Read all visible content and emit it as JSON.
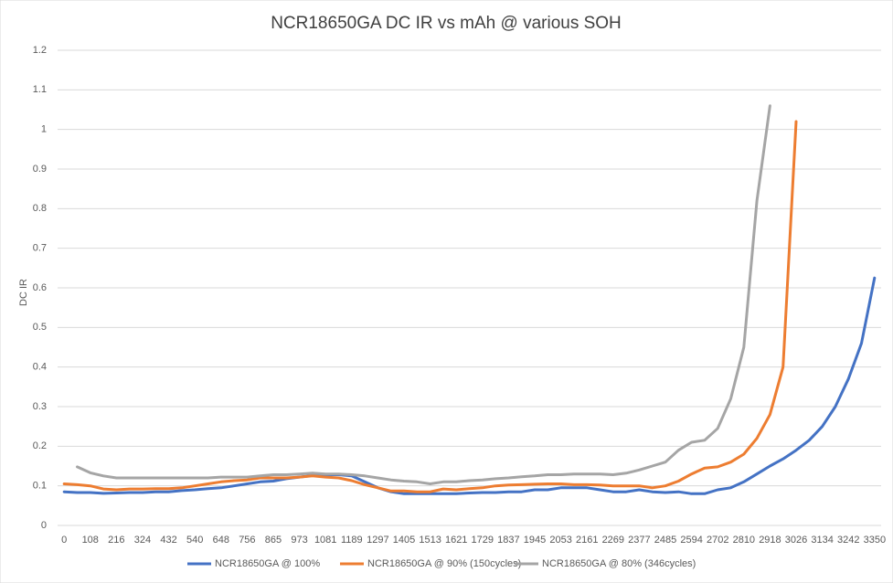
{
  "chart_data": {
    "type": "line",
    "title": "NCR18650GA DC IR vs mAh @ various SOH",
    "y_label": "DC IR",
    "categories": [
      0,
      null,
      108,
      null,
      216,
      null,
      324,
      null,
      432,
      null,
      540,
      null,
      648,
      null,
      756,
      null,
      865,
      null,
      973,
      null,
      1081,
      null,
      1189,
      null,
      1297,
      null,
      1405,
      null,
      1513,
      null,
      1621,
      null,
      1729,
      null,
      1837,
      null,
      1945,
      null,
      2053,
      null,
      2161,
      null,
      2269,
      null,
      2377,
      null,
      2485,
      null,
      2594,
      null,
      2702,
      null,
      2810,
      null,
      2918,
      null,
      3026,
      null,
      3134,
      null,
      3242,
      null,
      3350
    ],
    "series": [
      {
        "name": "NCR18650GA @ 100%",
        "color": "#4472c4",
        "values": [
          0.085,
          0.083,
          0.083,
          0.081,
          0.082,
          0.083,
          0.083,
          0.085,
          0.085,
          0.088,
          0.09,
          0.093,
          0.095,
          0.1,
          0.105,
          0.11,
          0.112,
          0.118,
          0.122,
          0.126,
          0.128,
          0.128,
          0.125,
          0.11,
          0.095,
          0.085,
          0.08,
          0.08,
          0.08,
          0.08,
          0.08,
          0.082,
          0.083,
          0.083,
          0.085,
          0.085,
          0.09,
          0.09,
          0.095,
          0.095,
          0.095,
          0.09,
          0.085,
          0.085,
          0.09,
          0.085,
          0.083,
          0.085,
          0.08,
          0.08,
          0.09,
          0.095,
          0.11,
          0.13,
          0.15,
          0.168,
          0.19,
          0.215,
          0.25,
          0.3,
          0.37,
          0.46,
          0.625
        ]
      },
      {
        "name": "NCR18650GA @ 90% (150cycles)",
        "color": "#ed7d31",
        "values": [
          0.105,
          0.103,
          0.1,
          0.092,
          0.09,
          0.092,
          0.092,
          0.093,
          0.093,
          0.095,
          0.1,
          0.105,
          0.11,
          0.113,
          0.115,
          0.12,
          0.12,
          0.12,
          0.122,
          0.125,
          0.122,
          0.12,
          0.113,
          0.103,
          0.095,
          0.087,
          0.087,
          0.085,
          0.085,
          0.092,
          0.09,
          0.093,
          0.095,
          0.1,
          0.102,
          0.103,
          0.104,
          0.105,
          0.105,
          0.103,
          0.103,
          0.102,
          0.1,
          0.1,
          0.1,
          0.095,
          0.1,
          0.112,
          0.13,
          0.145,
          0.148,
          0.16,
          0.18,
          0.22,
          0.28,
          0.4,
          1.02,
          null,
          null,
          null,
          null,
          null,
          null
        ]
      },
      {
        "name": "NCR18650GA @ 80% (346cycles)",
        "color": "#a5a5a5",
        "values": [
          null,
          0.148,
          0.133,
          0.125,
          0.12,
          0.12,
          0.12,
          0.12,
          0.12,
          0.12,
          0.12,
          0.12,
          0.122,
          0.122,
          0.122,
          0.125,
          0.128,
          0.128,
          0.13,
          0.132,
          0.13,
          0.13,
          0.128,
          0.125,
          0.12,
          0.115,
          0.112,
          0.11,
          0.105,
          0.11,
          0.11,
          0.113,
          0.115,
          0.118,
          0.12,
          0.123,
          0.125,
          0.128,
          0.128,
          0.13,
          0.13,
          0.13,
          0.128,
          0.132,
          0.14,
          0.15,
          0.16,
          0.19,
          0.21,
          0.215,
          0.245,
          0.32,
          0.45,
          0.82,
          1.06,
          null,
          null,
          null,
          null,
          null,
          null,
          null,
          null
        ]
      }
    ],
    "ylim": [
      0,
      1.2
    ],
    "yticks": [
      0,
      0.1,
      0.2,
      0.3,
      0.4,
      0.5,
      0.6,
      0.7,
      0.8,
      0.9,
      1,
      1.1,
      1.2
    ],
    "grid": true,
    "legend": "bottom"
  }
}
